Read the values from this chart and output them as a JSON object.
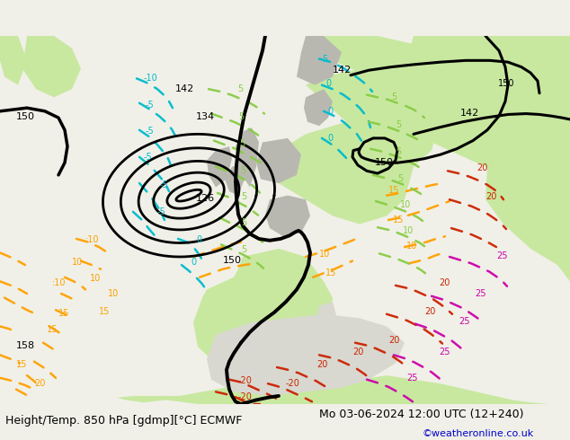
{
  "title_left": "Height/Temp. 850 hPa [gdmp][°C] ECMWF",
  "title_right": "Mo 03-06-2024 12:00 UTC (12+240)",
  "credit": "©weatheronline.co.uk",
  "figsize": [
    6.34,
    4.9
  ],
  "dpi": 100,
  "bg_light": "#f0f0e8",
  "ocean_color": "#d8d8d0",
  "land_light_green": "#c8e8a0",
  "land_mid_green": "#a8d878",
  "land_grey": "#b8b8b0",
  "bottom_bar": "#f0f0e8",
  "title_fontsize": 9,
  "credit_fontsize": 8,
  "credit_color": "#0000cc",
  "black": "#000000",
  "orange": "#ffa000",
  "red": "#cc2200",
  "magenta": "#cc00aa",
  "cyan": "#00bbcc",
  "lime": "#88cc44"
}
